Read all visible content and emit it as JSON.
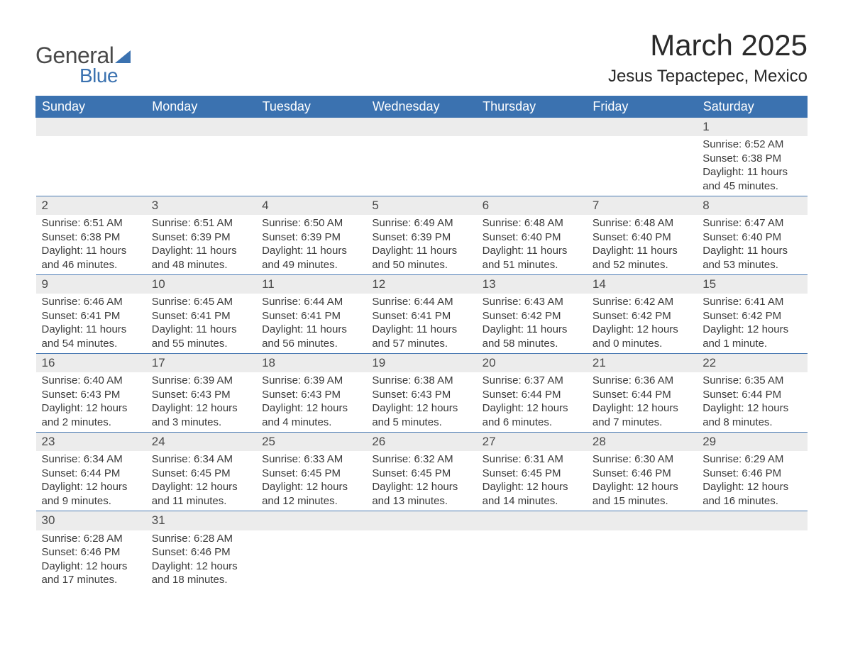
{
  "logo": {
    "text1": "General",
    "text2": "Blue"
  },
  "header": {
    "month_title": "March 2025",
    "location": "Jesus Tepactepec, Mexico"
  },
  "colors": {
    "header_bg": "#3b72b0",
    "header_text": "#ffffff",
    "daynum_bg": "#ececec",
    "border": "#4a7ab3",
    "text": "#3a3a3a"
  },
  "weekdays": [
    "Sunday",
    "Monday",
    "Tuesday",
    "Wednesday",
    "Thursday",
    "Friday",
    "Saturday"
  ],
  "weeks": [
    [
      null,
      null,
      null,
      null,
      null,
      null,
      {
        "n": "1",
        "sr": "Sunrise: 6:52 AM",
        "ss": "Sunset: 6:38 PM",
        "dl": "Daylight: 11 hours and 45 minutes."
      }
    ],
    [
      {
        "n": "2",
        "sr": "Sunrise: 6:51 AM",
        "ss": "Sunset: 6:38 PM",
        "dl": "Daylight: 11 hours and 46 minutes."
      },
      {
        "n": "3",
        "sr": "Sunrise: 6:51 AM",
        "ss": "Sunset: 6:39 PM",
        "dl": "Daylight: 11 hours and 48 minutes."
      },
      {
        "n": "4",
        "sr": "Sunrise: 6:50 AM",
        "ss": "Sunset: 6:39 PM",
        "dl": "Daylight: 11 hours and 49 minutes."
      },
      {
        "n": "5",
        "sr": "Sunrise: 6:49 AM",
        "ss": "Sunset: 6:39 PM",
        "dl": "Daylight: 11 hours and 50 minutes."
      },
      {
        "n": "6",
        "sr": "Sunrise: 6:48 AM",
        "ss": "Sunset: 6:40 PM",
        "dl": "Daylight: 11 hours and 51 minutes."
      },
      {
        "n": "7",
        "sr": "Sunrise: 6:48 AM",
        "ss": "Sunset: 6:40 PM",
        "dl": "Daylight: 11 hours and 52 minutes."
      },
      {
        "n": "8",
        "sr": "Sunrise: 6:47 AM",
        "ss": "Sunset: 6:40 PM",
        "dl": "Daylight: 11 hours and 53 minutes."
      }
    ],
    [
      {
        "n": "9",
        "sr": "Sunrise: 6:46 AM",
        "ss": "Sunset: 6:41 PM",
        "dl": "Daylight: 11 hours and 54 minutes."
      },
      {
        "n": "10",
        "sr": "Sunrise: 6:45 AM",
        "ss": "Sunset: 6:41 PM",
        "dl": "Daylight: 11 hours and 55 minutes."
      },
      {
        "n": "11",
        "sr": "Sunrise: 6:44 AM",
        "ss": "Sunset: 6:41 PM",
        "dl": "Daylight: 11 hours and 56 minutes."
      },
      {
        "n": "12",
        "sr": "Sunrise: 6:44 AM",
        "ss": "Sunset: 6:41 PM",
        "dl": "Daylight: 11 hours and 57 minutes."
      },
      {
        "n": "13",
        "sr": "Sunrise: 6:43 AM",
        "ss": "Sunset: 6:42 PM",
        "dl": "Daylight: 11 hours and 58 minutes."
      },
      {
        "n": "14",
        "sr": "Sunrise: 6:42 AM",
        "ss": "Sunset: 6:42 PM",
        "dl": "Daylight: 12 hours and 0 minutes."
      },
      {
        "n": "15",
        "sr": "Sunrise: 6:41 AM",
        "ss": "Sunset: 6:42 PM",
        "dl": "Daylight: 12 hours and 1 minute."
      }
    ],
    [
      {
        "n": "16",
        "sr": "Sunrise: 6:40 AM",
        "ss": "Sunset: 6:43 PM",
        "dl": "Daylight: 12 hours and 2 minutes."
      },
      {
        "n": "17",
        "sr": "Sunrise: 6:39 AM",
        "ss": "Sunset: 6:43 PM",
        "dl": "Daylight: 12 hours and 3 minutes."
      },
      {
        "n": "18",
        "sr": "Sunrise: 6:39 AM",
        "ss": "Sunset: 6:43 PM",
        "dl": "Daylight: 12 hours and 4 minutes."
      },
      {
        "n": "19",
        "sr": "Sunrise: 6:38 AM",
        "ss": "Sunset: 6:43 PM",
        "dl": "Daylight: 12 hours and 5 minutes."
      },
      {
        "n": "20",
        "sr": "Sunrise: 6:37 AM",
        "ss": "Sunset: 6:44 PM",
        "dl": "Daylight: 12 hours and 6 minutes."
      },
      {
        "n": "21",
        "sr": "Sunrise: 6:36 AM",
        "ss": "Sunset: 6:44 PM",
        "dl": "Daylight: 12 hours and 7 minutes."
      },
      {
        "n": "22",
        "sr": "Sunrise: 6:35 AM",
        "ss": "Sunset: 6:44 PM",
        "dl": "Daylight: 12 hours and 8 minutes."
      }
    ],
    [
      {
        "n": "23",
        "sr": "Sunrise: 6:34 AM",
        "ss": "Sunset: 6:44 PM",
        "dl": "Daylight: 12 hours and 9 minutes."
      },
      {
        "n": "24",
        "sr": "Sunrise: 6:34 AM",
        "ss": "Sunset: 6:45 PM",
        "dl": "Daylight: 12 hours and 11 minutes."
      },
      {
        "n": "25",
        "sr": "Sunrise: 6:33 AM",
        "ss": "Sunset: 6:45 PM",
        "dl": "Daylight: 12 hours and 12 minutes."
      },
      {
        "n": "26",
        "sr": "Sunrise: 6:32 AM",
        "ss": "Sunset: 6:45 PM",
        "dl": "Daylight: 12 hours and 13 minutes."
      },
      {
        "n": "27",
        "sr": "Sunrise: 6:31 AM",
        "ss": "Sunset: 6:45 PM",
        "dl": "Daylight: 12 hours and 14 minutes."
      },
      {
        "n": "28",
        "sr": "Sunrise: 6:30 AM",
        "ss": "Sunset: 6:46 PM",
        "dl": "Daylight: 12 hours and 15 minutes."
      },
      {
        "n": "29",
        "sr": "Sunrise: 6:29 AM",
        "ss": "Sunset: 6:46 PM",
        "dl": "Daylight: 12 hours and 16 minutes."
      }
    ],
    [
      {
        "n": "30",
        "sr": "Sunrise: 6:28 AM",
        "ss": "Sunset: 6:46 PM",
        "dl": "Daylight: 12 hours and 17 minutes."
      },
      {
        "n": "31",
        "sr": "Sunrise: 6:28 AM",
        "ss": "Sunset: 6:46 PM",
        "dl": "Daylight: 12 hours and 18 minutes."
      },
      null,
      null,
      null,
      null,
      null
    ]
  ]
}
